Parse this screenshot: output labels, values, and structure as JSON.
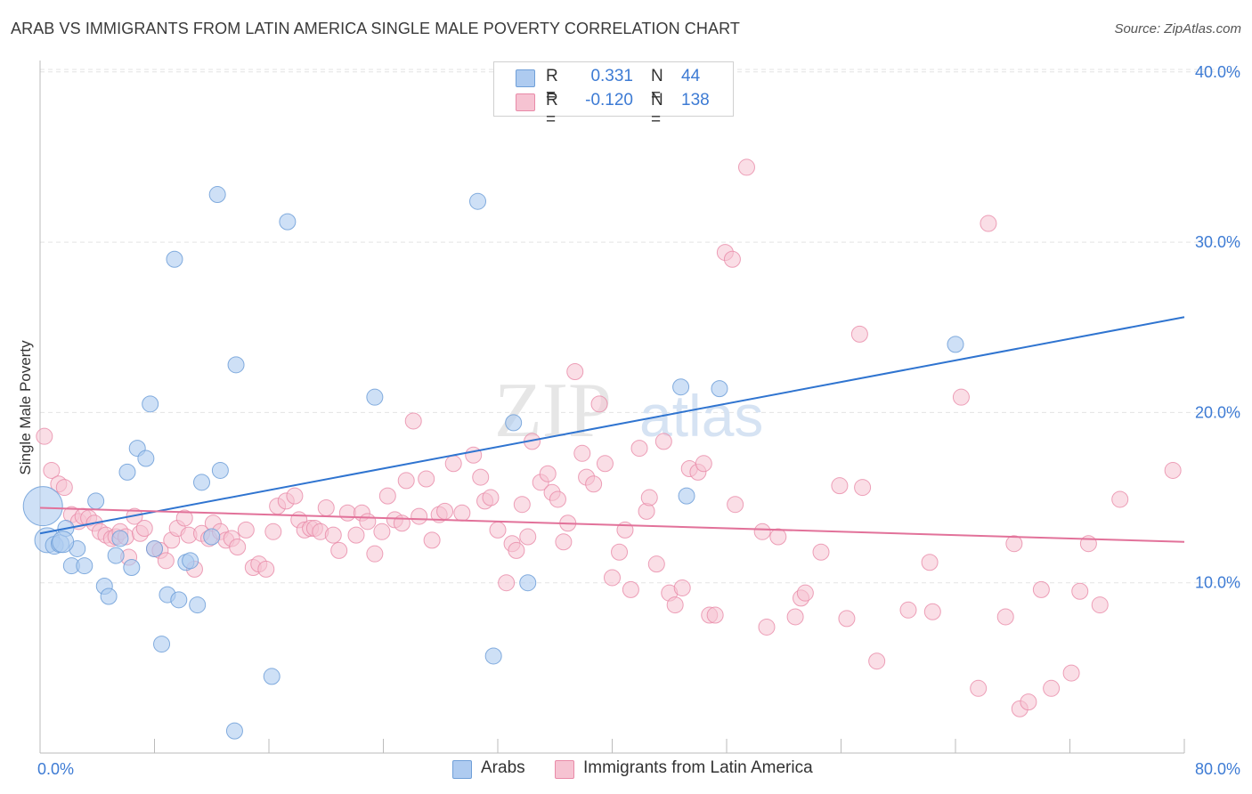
{
  "header": {
    "title": "ARAB VS IMMIGRANTS FROM LATIN AMERICA SINGLE MALE POVERTY CORRELATION CHART",
    "source": "Source: ZipAtlas.com"
  },
  "watermark": {
    "big": "ZIP",
    "small": "atlas"
  },
  "legend": {
    "rows": [
      {
        "r_label": "R =",
        "r_value": "0.331",
        "n_label": "N =",
        "n_value": "44"
      },
      {
        "r_label": "R =",
        "r_value": "-0.120",
        "n_label": "N =",
        "n_value": "138"
      }
    ]
  },
  "colors": {
    "arab_fill": "#aecbf0",
    "arab_stroke": "#6f9fd8",
    "arab_line": "#2f74d0",
    "latam_fill": "#f6c3d2",
    "latam_stroke": "#e98aa8",
    "latam_line": "#e2729a",
    "tick_label": "#3d7bd4",
    "grid": "#e3e3e3"
  },
  "chart_data": {
    "type": "scatter",
    "title": "ARAB VS IMMIGRANTS FROM LATIN AMERICA SINGLE MALE POVERTY CORRELATION CHART",
    "xlabel": "",
    "ylabel": "Single Male Poverty",
    "xlim": [
      0,
      80
    ],
    "ylim": [
      0,
      40
    ],
    "x_tick_labels": [
      "0.0%",
      "80.0%"
    ],
    "y_ticks": [
      10,
      20,
      30,
      40
    ],
    "y_tick_labels": [
      "10.0%",
      "20.0%",
      "30.0%",
      "40.0%"
    ],
    "grid": "horizontal dashed",
    "legend_position": "bottom",
    "series": [
      {
        "name": "Arabs",
        "r": 0.331,
        "n": 44,
        "trend": [
          [
            0,
            12.9
          ],
          [
            80,
            25.6
          ]
        ],
        "points": [
          [
            0.2,
            14.5,
            22
          ],
          [
            0.5,
            12.5,
            14
          ],
          [
            1.0,
            12.2,
            10
          ],
          [
            1.4,
            12.3,
            10
          ],
          [
            1.8,
            13.2,
            9
          ],
          [
            2.2,
            11.0,
            9
          ],
          [
            2.6,
            12.0,
            9
          ],
          [
            3.1,
            11.0,
            9
          ],
          [
            3.9,
            14.8,
            9
          ],
          [
            4.5,
            9.8,
            9
          ],
          [
            4.8,
            9.2,
            9
          ],
          [
            5.3,
            11.6,
            9
          ],
          [
            5.6,
            12.6,
            9
          ],
          [
            6.1,
            16.5,
            9
          ],
          [
            6.4,
            10.9,
            9
          ],
          [
            6.8,
            17.9,
            9
          ],
          [
            7.4,
            17.3,
            9
          ],
          [
            7.7,
            20.5,
            9
          ],
          [
            8.0,
            12.0,
            9
          ],
          [
            8.5,
            6.4,
            9
          ],
          [
            8.9,
            9.3,
            9
          ],
          [
            9.4,
            29.0,
            9
          ],
          [
            9.7,
            9.0,
            9
          ],
          [
            10.2,
            11.2,
            9
          ],
          [
            10.5,
            11.3,
            9
          ],
          [
            11.0,
            8.7,
            9
          ],
          [
            11.3,
            15.9,
            9
          ],
          [
            12.0,
            12.7,
            9
          ],
          [
            12.4,
            32.8,
            9
          ],
          [
            12.6,
            16.6,
            9
          ],
          [
            13.6,
            1.3,
            9
          ],
          [
            13.7,
            22.8,
            9
          ],
          [
            16.2,
            4.5,
            9
          ],
          [
            17.3,
            31.2,
            9
          ],
          [
            23.4,
            20.9,
            9
          ],
          [
            30.6,
            32.4,
            9
          ],
          [
            31.7,
            5.7,
            9
          ],
          [
            33.1,
            19.4,
            9
          ],
          [
            34.1,
            10.0,
            9
          ],
          [
            44.8,
            21.5,
            9
          ],
          [
            45.2,
            15.1,
            9
          ],
          [
            47.5,
            21.4,
            9
          ],
          [
            64.0,
            24.0,
            9
          ],
          [
            1.6,
            12.4,
            12
          ]
        ]
      },
      {
        "name": "Immigrants from Latin America",
        "r": -0.12,
        "n": 138,
        "trend": [
          [
            0,
            14.4
          ],
          [
            80,
            12.4
          ]
        ],
        "points": [
          [
            0.3,
            18.6
          ],
          [
            0.8,
            16.6
          ],
          [
            1.3,
            15.8
          ],
          [
            1.7,
            15.6
          ],
          [
            2.2,
            14.0
          ],
          [
            2.7,
            13.6
          ],
          [
            3.0,
            13.9
          ],
          [
            3.4,
            13.8
          ],
          [
            3.8,
            13.5
          ],
          [
            4.2,
            13.0
          ],
          [
            4.6,
            12.8
          ],
          [
            5.0,
            12.6
          ],
          [
            5.3,
            12.7
          ],
          [
            5.6,
            13.0
          ],
          [
            6.0,
            12.7
          ],
          [
            6.2,
            11.5
          ],
          [
            6.6,
            13.9
          ],
          [
            7.0,
            12.9
          ],
          [
            7.3,
            13.2
          ],
          [
            8.0,
            12.0
          ],
          [
            8.4,
            11.9
          ],
          [
            8.8,
            11.3
          ],
          [
            9.2,
            12.5
          ],
          [
            9.6,
            13.2
          ],
          [
            10.1,
            13.8
          ],
          [
            10.4,
            12.8
          ],
          [
            10.8,
            10.8
          ],
          [
            11.3,
            12.9
          ],
          [
            11.8,
            12.6
          ],
          [
            12.1,
            13.5
          ],
          [
            12.6,
            13.0
          ],
          [
            13.0,
            12.5
          ],
          [
            13.4,
            12.6
          ],
          [
            13.8,
            12.1
          ],
          [
            14.4,
            13.1
          ],
          [
            14.9,
            10.9
          ],
          [
            15.3,
            11.1
          ],
          [
            15.8,
            10.8
          ],
          [
            16.3,
            13.0
          ],
          [
            16.6,
            14.5
          ],
          [
            17.2,
            14.8
          ],
          [
            17.8,
            15.1
          ],
          [
            18.1,
            13.7
          ],
          [
            18.5,
            13.1
          ],
          [
            18.9,
            13.2
          ],
          [
            19.2,
            13.2
          ],
          [
            19.6,
            13.0
          ],
          [
            20.0,
            14.4
          ],
          [
            20.5,
            12.8
          ],
          [
            20.9,
            11.9
          ],
          [
            21.5,
            14.1
          ],
          [
            22.1,
            12.8
          ],
          [
            22.5,
            14.1
          ],
          [
            22.9,
            13.6
          ],
          [
            23.4,
            11.7
          ],
          [
            23.9,
            13.0
          ],
          [
            24.3,
            15.1
          ],
          [
            24.8,
            13.7
          ],
          [
            25.3,
            13.5
          ],
          [
            25.6,
            16.0
          ],
          [
            26.1,
            19.5
          ],
          [
            26.5,
            13.9
          ],
          [
            27.0,
            16.1
          ],
          [
            27.4,
            12.5
          ],
          [
            27.9,
            14.0
          ],
          [
            28.3,
            14.2
          ],
          [
            28.9,
            17.0
          ],
          [
            29.5,
            14.1
          ],
          [
            30.3,
            17.5
          ],
          [
            30.8,
            16.2
          ],
          [
            31.1,
            14.8
          ],
          [
            31.5,
            15.0
          ],
          [
            32.0,
            13.1
          ],
          [
            32.6,
            10.0
          ],
          [
            33.0,
            12.3
          ],
          [
            33.3,
            11.9
          ],
          [
            33.7,
            14.6
          ],
          [
            34.1,
            12.7
          ],
          [
            34.4,
            18.3
          ],
          [
            35.0,
            15.9
          ],
          [
            35.5,
            16.4
          ],
          [
            35.8,
            15.3
          ],
          [
            36.2,
            14.9
          ],
          [
            36.6,
            12.4
          ],
          [
            36.9,
            13.5
          ],
          [
            37.4,
            22.4
          ],
          [
            37.9,
            17.6
          ],
          [
            38.2,
            16.2
          ],
          [
            38.7,
            15.8
          ],
          [
            39.1,
            20.5
          ],
          [
            39.5,
            17.0
          ],
          [
            40.0,
            10.3
          ],
          [
            40.5,
            11.8
          ],
          [
            40.9,
            13.1
          ],
          [
            41.3,
            9.6
          ],
          [
            41.9,
            17.9
          ],
          [
            42.4,
            14.2
          ],
          [
            42.6,
            15.0
          ],
          [
            43.1,
            11.1
          ],
          [
            43.6,
            18.3
          ],
          [
            44.0,
            9.4
          ],
          [
            44.4,
            8.7
          ],
          [
            44.9,
            9.7
          ],
          [
            45.4,
            16.7
          ],
          [
            46.0,
            16.5
          ],
          [
            46.4,
            17.0
          ],
          [
            46.8,
            8.1
          ],
          [
            47.2,
            8.1
          ],
          [
            47.9,
            29.4
          ],
          [
            48.4,
            29.0
          ],
          [
            48.6,
            14.6
          ],
          [
            49.4,
            34.4
          ],
          [
            50.5,
            13.0
          ],
          [
            50.8,
            7.4
          ],
          [
            51.6,
            12.7
          ],
          [
            52.8,
            8.0
          ],
          [
            53.2,
            9.1
          ],
          [
            53.5,
            9.4
          ],
          [
            54.6,
            11.8
          ],
          [
            55.9,
            15.7
          ],
          [
            56.4,
            7.9
          ],
          [
            57.3,
            24.6
          ],
          [
            57.5,
            15.6
          ],
          [
            58.5,
            5.4
          ],
          [
            60.7,
            8.4
          ],
          [
            62.2,
            11.2
          ],
          [
            62.4,
            8.3
          ],
          [
            64.4,
            20.9
          ],
          [
            65.6,
            3.8
          ],
          [
            66.3,
            31.1
          ],
          [
            67.5,
            8.0
          ],
          [
            68.1,
            12.3
          ],
          [
            68.5,
            2.6
          ],
          [
            69.1,
            3.0
          ],
          [
            70.0,
            9.6
          ],
          [
            70.7,
            3.8
          ],
          [
            72.1,
            4.7
          ],
          [
            72.7,
            9.5
          ],
          [
            73.3,
            12.3
          ],
          [
            74.1,
            8.7
          ],
          [
            75.5,
            14.9
          ],
          [
            79.2,
            16.6
          ]
        ]
      }
    ]
  },
  "bottom_legend": [
    {
      "label": "Arabs"
    },
    {
      "label": "Immigrants from Latin America"
    }
  ]
}
